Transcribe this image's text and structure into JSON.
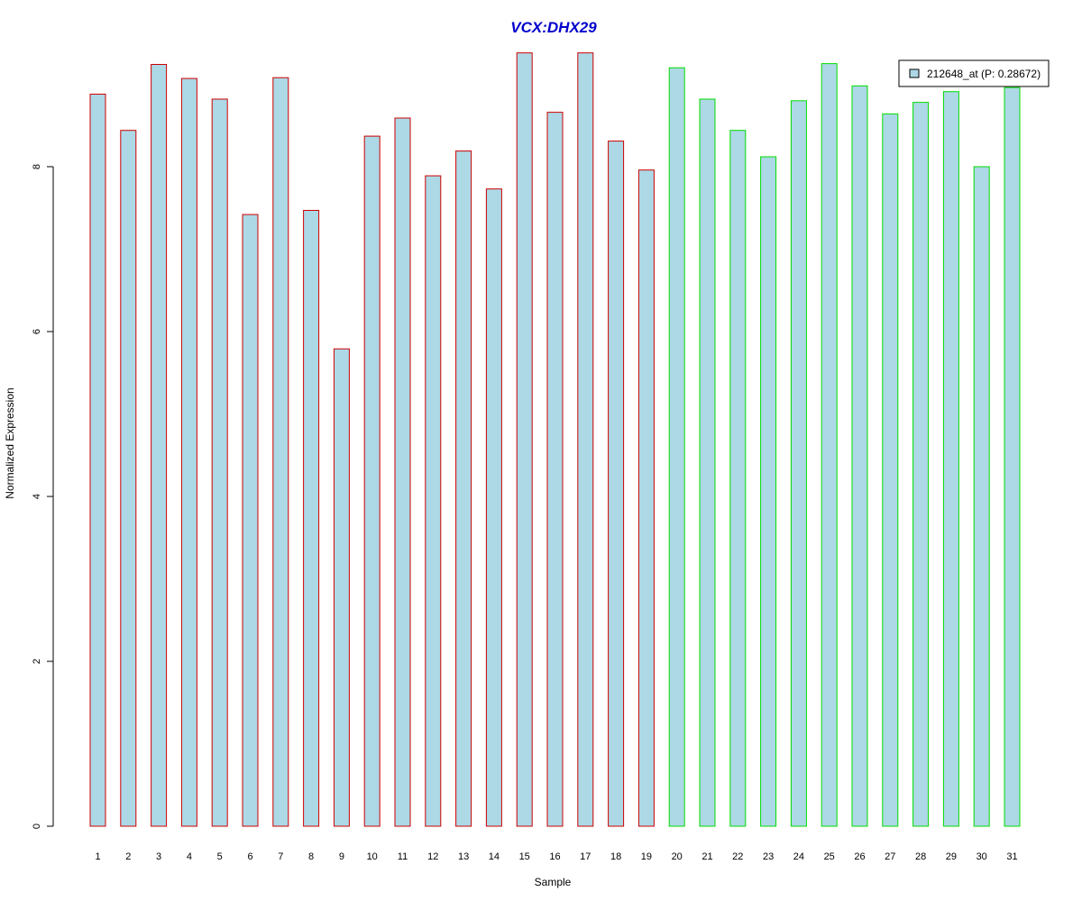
{
  "chart_data": {
    "type": "bar",
    "title": "VCX:DHX29",
    "xlabel": "Sample",
    "ylabel": "Normalized Expression",
    "ylim": [
      0,
      9.4
    ],
    "yticks": [
      0,
      2,
      4,
      6,
      8
    ],
    "categories": [
      "1",
      "2",
      "3",
      "4",
      "5",
      "6",
      "7",
      "8",
      "9",
      "10",
      "11",
      "12",
      "13",
      "14",
      "15",
      "16",
      "17",
      "18",
      "19",
      "20",
      "21",
      "22",
      "23",
      "24",
      "25",
      "26",
      "27",
      "28",
      "29",
      "30",
      "31"
    ],
    "series": [
      {
        "name": "212648_at (P: 0.28672)",
        "values": [
          8.88,
          8.44,
          9.24,
          9.07,
          8.82,
          7.42,
          9.08,
          7.47,
          5.79,
          8.37,
          8.59,
          7.89,
          8.19,
          7.73,
          9.38,
          8.66,
          9.38,
          8.31,
          7.96,
          9.2,
          8.82,
          8.44,
          8.12,
          8.8,
          9.25,
          8.98,
          8.64,
          8.78,
          8.91,
          8.0,
          8.96
        ]
      }
    ],
    "groups": [
      {
        "samples": [
          1,
          19
        ],
        "border_color": "#cc0000"
      },
      {
        "samples": [
          20,
          31
        ],
        "border_color": "#00dd00"
      }
    ],
    "bar_fill": "#add8e6",
    "title_color": "#0000cc",
    "legend": {
      "placement": "top-right",
      "entry": "212648_at (P: 0.28672)"
    },
    "grid": false
  }
}
